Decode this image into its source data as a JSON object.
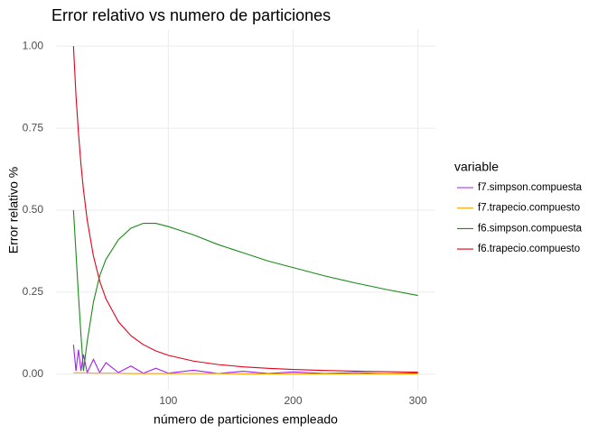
{
  "chart_data": {
    "type": "line",
    "title": "Error relativo vs numero de particiones",
    "x_label": "número de particiones empleado",
    "y_label": "Error relativo %",
    "legend_title": "variable",
    "legend_position": "right",
    "grid": true,
    "x": [
      24,
      26,
      28,
      30,
      32,
      35,
      40,
      45,
      50,
      60,
      70,
      80,
      90,
      100,
      120,
      140,
      160,
      180,
      200,
      225,
      250,
      275,
      300
    ],
    "xlim": [
      10,
      314
    ],
    "xticks": [
      100,
      200,
      300
    ],
    "ylim": [
      -0.05,
      1.05
    ],
    "yticks": [
      {
        "value": 0,
        "label": "0.00"
      },
      {
        "value": 0.25,
        "label": "0.25"
      },
      {
        "value": 0.5,
        "label": "0.50"
      },
      {
        "value": 0.75,
        "label": "0.75"
      },
      {
        "value": 1,
        "label": "1.00"
      }
    ],
    "series": [
      {
        "name": "f7.simpson.compuesta",
        "color": "#a020f0",
        "values": [
          0.09,
          0.01,
          0.075,
          0.01,
          0.06,
          0.005,
          0.045,
          0.005,
          0.035,
          0.005,
          0.025,
          0.003,
          0.018,
          0.003,
          0.012,
          0.002,
          0.009,
          0.002,
          0.007,
          0.002,
          0.005,
          0.001,
          0.004
        ]
      },
      {
        "name": "f7.trapecio.compuesto",
        "color": "#ffa500",
        "values": [
          0.004,
          0.004,
          0.004,
          0.004,
          0.004,
          0.004,
          0.003,
          0.003,
          0.003,
          0.003,
          0.002,
          0.002,
          0.002,
          0.002,
          0.002,
          0.002,
          0.001,
          0.001,
          0.001,
          0.001,
          0.001,
          0.001,
          0.001
        ]
      },
      {
        "name": "f6.simpson.compuesta",
        "color": "#1a8a1a",
        "values": [
          0.5,
          0.37,
          0.24,
          0.12,
          0.01,
          0.1,
          0.22,
          0.3,
          0.35,
          0.41,
          0.445,
          0.46,
          0.46,
          0.45,
          0.425,
          0.395,
          0.37,
          0.345,
          0.325,
          0.3,
          0.278,
          0.258,
          0.24
        ]
      },
      {
        "name": "f6.trapecio.compuesto",
        "color": "#e3001b",
        "values": [
          1.0,
          0.85,
          0.735,
          0.64,
          0.5625,
          0.47,
          0.36,
          0.284,
          0.23,
          0.16,
          0.1175,
          0.09,
          0.071,
          0.0576,
          0.04,
          0.0294,
          0.0225,
          0.0178,
          0.0144,
          0.0114,
          0.0092,
          0.0076,
          0.0064
        ]
      }
    ]
  }
}
